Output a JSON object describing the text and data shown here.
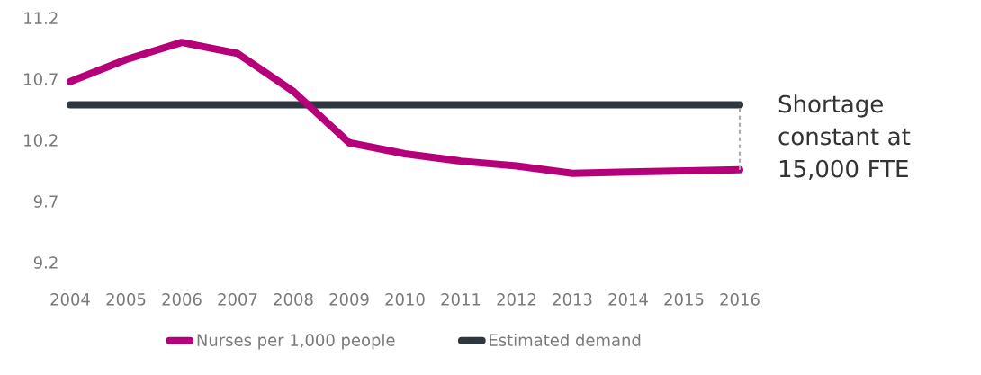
{
  "chart_data": {
    "type": "line",
    "categories": [
      "2004",
      "2005",
      "2006",
      "2007",
      "2008",
      "2009",
      "2010",
      "2011",
      "2012",
      "2013",
      "2014",
      "2015",
      "2016"
    ],
    "series": [
      {
        "name": "Nurses per 1,000 people",
        "color": "#b5007a",
        "values": [
          10.68,
          10.86,
          11.0,
          10.91,
          10.6,
          10.18,
          10.09,
          10.03,
          9.99,
          9.93,
          9.94,
          9.95,
          9.96
        ]
      },
      {
        "name": "Estimated demand",
        "color": "#2e3740",
        "values": [
          10.49,
          10.49,
          10.49,
          10.49,
          10.49,
          10.49,
          10.49,
          10.49,
          10.49,
          10.49,
          10.49,
          10.49,
          10.49
        ]
      }
    ],
    "ylim": [
      9.2,
      11.2
    ],
    "yticks": [
      9.2,
      9.7,
      10.2,
      10.7,
      11.2
    ],
    "annotations": [
      "Shortage constant at 15,000 FTE"
    ],
    "legend": "bottom",
    "grid": false,
    "marker": "none",
    "line_style": "solid"
  }
}
